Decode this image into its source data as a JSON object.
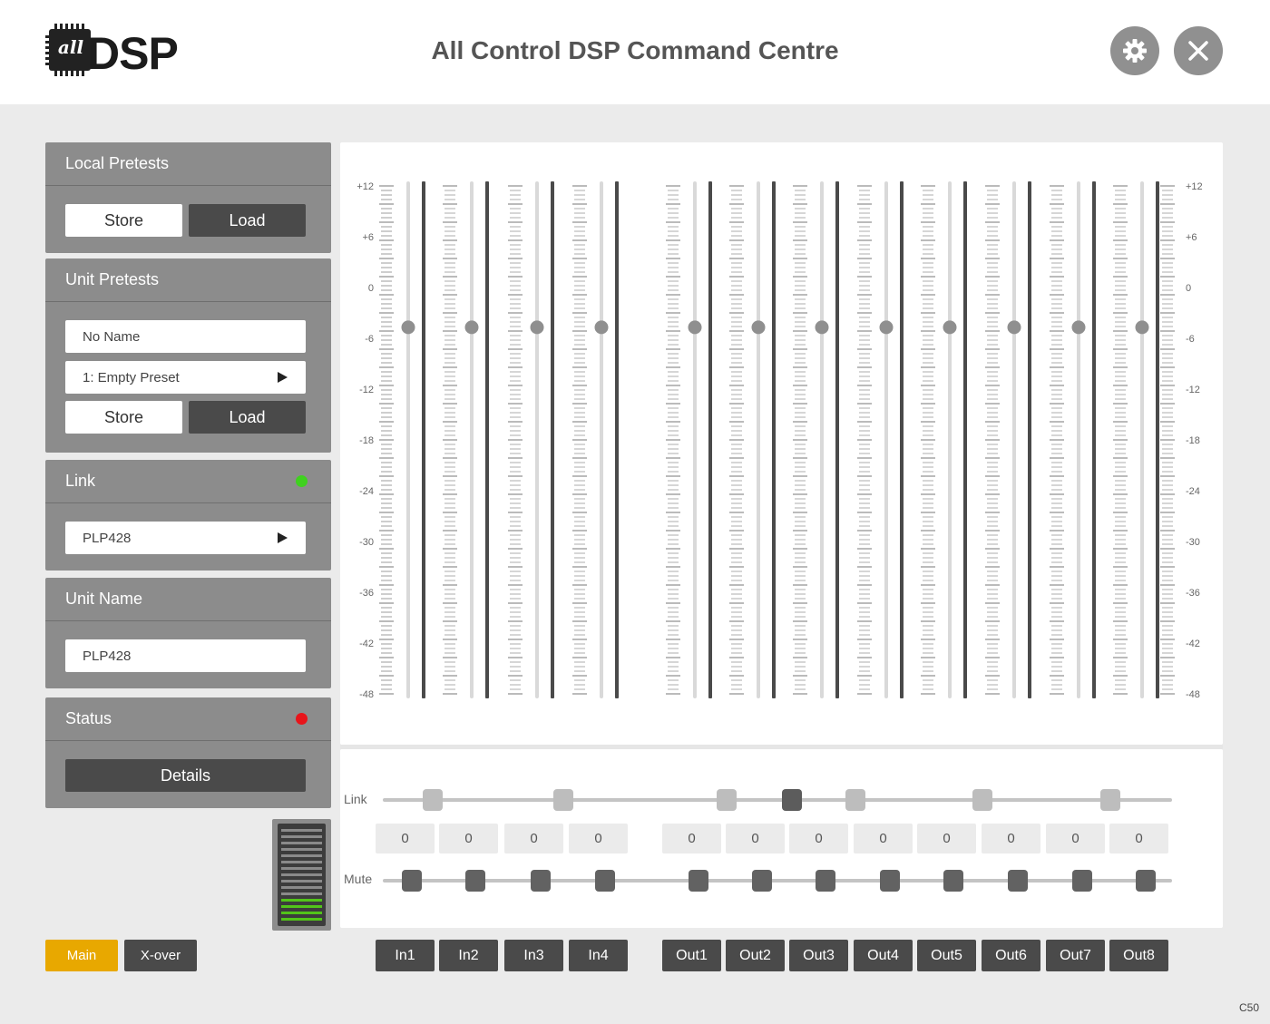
{
  "header": {
    "logo_chip_text": "all",
    "logo_text": "DSP",
    "title": "All Control DSP Command Centre",
    "settings_icon": "gear-icon",
    "close_icon": "close-icon"
  },
  "local_presets": {
    "title": "Local Pretests",
    "store_label": "Store",
    "load_label": "Load"
  },
  "unit_presets": {
    "title": "Unit Pretests",
    "name_value": "No Name",
    "preset_value": "1: Empty Preset",
    "store_label": "Store",
    "load_label": "Load"
  },
  "link": {
    "title": "Link",
    "status_color": "#3fd11f",
    "device_value": "PLP428"
  },
  "unit_name": {
    "title": "Unit Name",
    "value": "PLP428"
  },
  "status": {
    "title": "Status",
    "status_color": "#e8141a",
    "details_label": "Details"
  },
  "meter": {
    "segments": 15,
    "lit_segments": 4,
    "lit_color": "#52c41a"
  },
  "tabs": {
    "main_label": "Main",
    "xover_label": "X-over",
    "active_color": "#e8a800"
  },
  "scale": {
    "labels": [
      "+12",
      "+6",
      "0",
      "-6",
      "-12",
      "-18",
      "-24",
      "-30",
      "-36",
      "-42",
      "-48"
    ]
  },
  "faders": {
    "min_db": -48,
    "max_db": 12,
    "level_db": -4.7
  },
  "controls": {
    "link_label": "Link",
    "mute_label": "Mute"
  },
  "channels": [
    {
      "name": "In1",
      "value": "0"
    },
    {
      "name": "In2",
      "value": "0"
    },
    {
      "name": "In3",
      "value": "0"
    },
    {
      "name": "In4",
      "value": "0"
    },
    {
      "name": "Out1",
      "value": "0"
    },
    {
      "name": "Out2",
      "value": "0"
    },
    {
      "name": "Out3",
      "value": "0"
    },
    {
      "name": "Out4",
      "value": "0"
    },
    {
      "name": "Out5",
      "value": "0"
    },
    {
      "name": "Out6",
      "value": "0"
    },
    {
      "name": "Out7",
      "value": "0"
    },
    {
      "name": "Out8",
      "value": "0"
    }
  ],
  "version": "C50"
}
